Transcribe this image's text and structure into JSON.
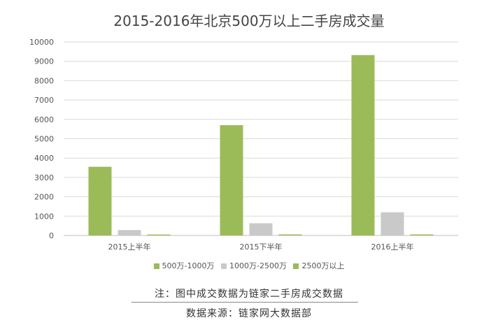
{
  "chart_data": {
    "type": "bar",
    "title": "2015-2016年北京500万以上二手房成交量",
    "categories": [
      "2015上半年",
      "2015下半年",
      "2016上半年"
    ],
    "series": [
      {
        "name": "500万-1000万",
        "values": [
          3550,
          5700,
          9320
        ],
        "color": "#9bbb59"
      },
      {
        "name": "1000万-2500万",
        "values": [
          280,
          630,
          1200
        ],
        "color": "#c9c9c9"
      },
      {
        "name": "2500万以上",
        "values": [
          50,
          55,
          55
        ],
        "color": "#9bbb59"
      }
    ],
    "ylim": [
      0,
      10000
    ],
    "yticks": [
      0,
      1000,
      2000,
      3000,
      4000,
      5000,
      6000,
      7000,
      8000,
      9000,
      10000
    ],
    "grid": true,
    "legend_position": "bottom",
    "xlabel": "",
    "ylabel": ""
  },
  "footer": {
    "note": "注：图中成交数据为链家二手房成交数据",
    "source": "数据来源：链家网大数据部"
  }
}
